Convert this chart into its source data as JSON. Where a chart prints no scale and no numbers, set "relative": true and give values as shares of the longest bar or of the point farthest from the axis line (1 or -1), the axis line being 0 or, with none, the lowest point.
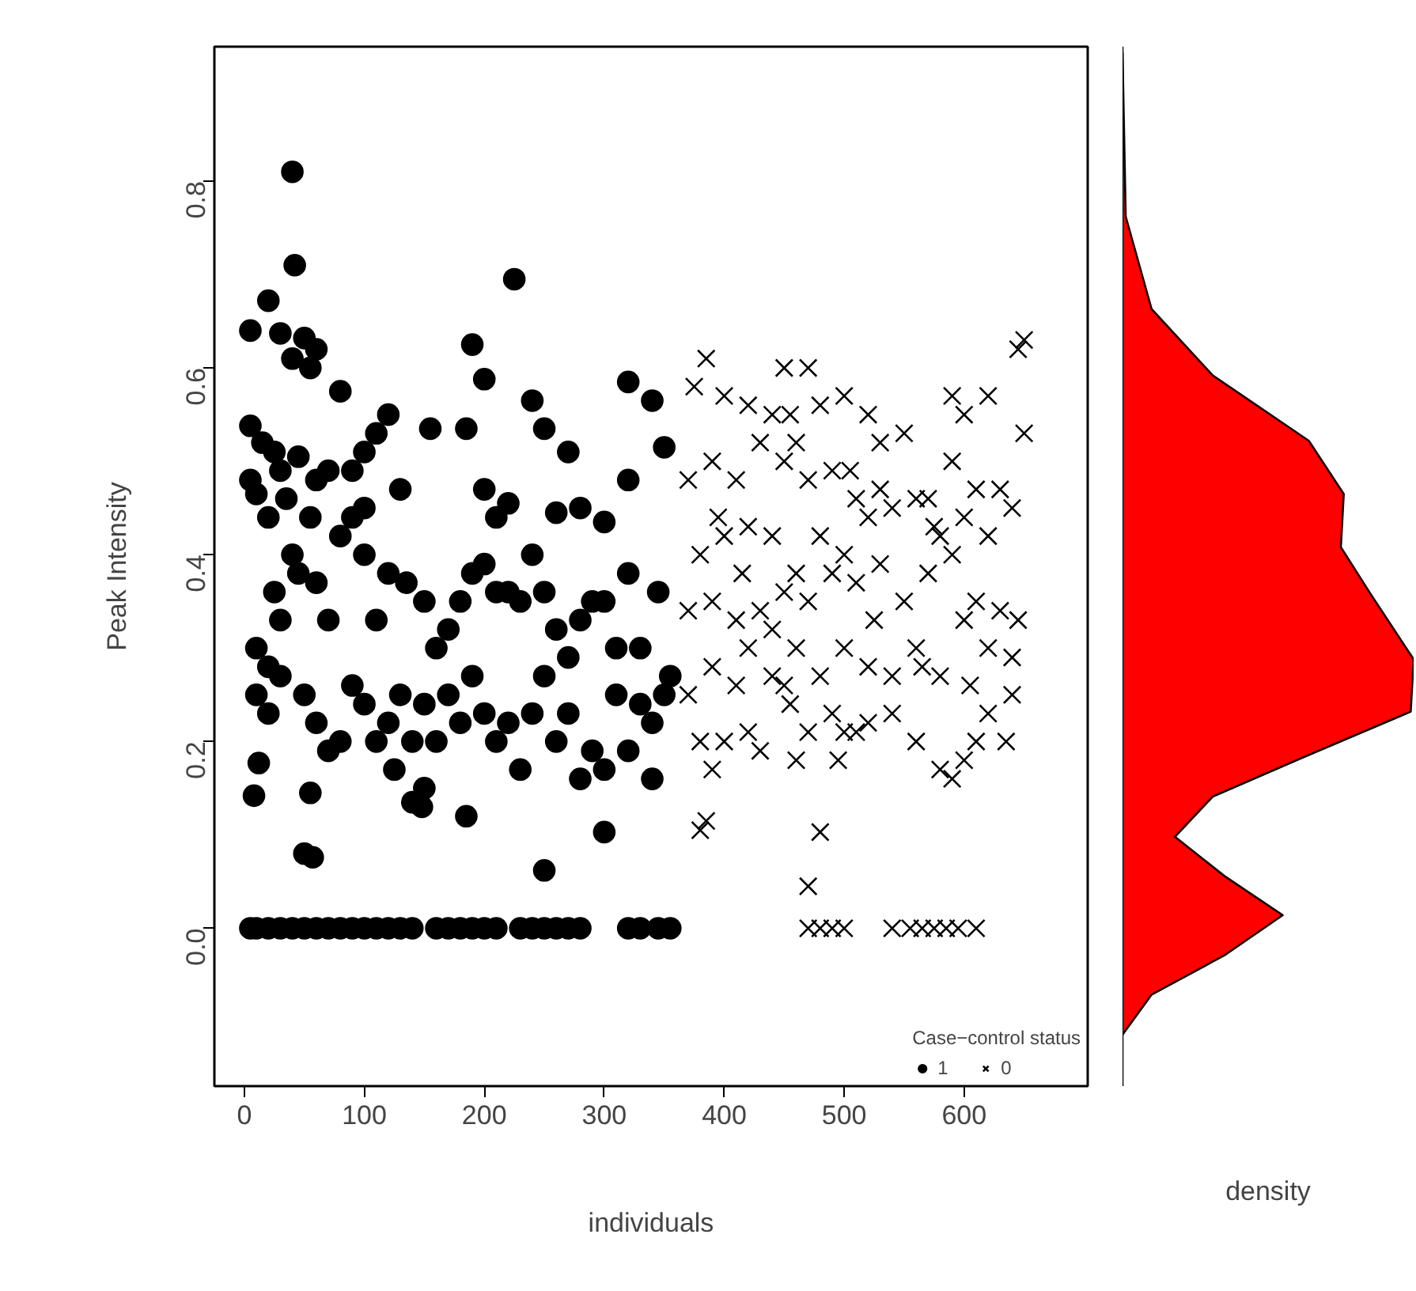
{
  "chart_data": [
    {
      "type": "scatter",
      "xlabel": "individuals",
      "ylabel": "Peak Intensity",
      "legend_title": "Case−control status",
      "legend": "bottom right",
      "grid": false,
      "xlim": [
        -25,
        703
      ],
      "ylim": [
        -0.169,
        0.944
      ],
      "xticks": [
        0,
        100,
        200,
        300,
        400,
        500,
        600
      ],
      "yticks": [
        {
          "value": 0,
          "label": "0.0"
        },
        0.2,
        0.4,
        0.6,
        0.8
      ],
      "series": [
        {
          "name": "1",
          "color": "#000000",
          "marker": "circle",
          "x": [
            5,
            10,
            20,
            30,
            40,
            50,
            60,
            70,
            80,
            90,
            100,
            110,
            120,
            130,
            140,
            160,
            170,
            180,
            190,
            200,
            210,
            230,
            240,
            250,
            260,
            270,
            280,
            320,
            330,
            345,
            355,
            40,
            42,
            225,
            20,
            5,
            30,
            50,
            60,
            40,
            190,
            80,
            200,
            5,
            15,
            25,
            30,
            45,
            55,
            155,
            185,
            240,
            250,
            270,
            320,
            340,
            350,
            110,
            120,
            100,
            5,
            10,
            20,
            35,
            55,
            60,
            70,
            90,
            100,
            130,
            200,
            210,
            220,
            260,
            280,
            300,
            320,
            10,
            20,
            25,
            30,
            40,
            45,
            60,
            70,
            80,
            90,
            100,
            110,
            120,
            135,
            150,
            160,
            170,
            180,
            190,
            200,
            210,
            220,
            230,
            240,
            250,
            260,
            270,
            280,
            290,
            300,
            310,
            320,
            330,
            345,
            10,
            20,
            30,
            50,
            60,
            70,
            80,
            90,
            100,
            110,
            120,
            130,
            140,
            150,
            160,
            170,
            180,
            190,
            200,
            210,
            220,
            230,
            240,
            250,
            260,
            270,
            280,
            290,
            300,
            310,
            320,
            330,
            340,
            350,
            8,
            12,
            55,
            50,
            57,
            140,
            148,
            185,
            250,
            300,
            340,
            355,
            150,
            125
          ],
          "values": [
            0,
            0,
            0,
            0,
            0,
            0,
            0,
            0,
            0,
            0,
            0,
            0,
            0,
            0,
            0,
            0,
            0,
            0,
            0,
            0,
            0,
            0,
            0,
            0,
            0,
            0,
            0,
            0,
            0,
            0,
            0,
            0.81,
            0.71,
            0.695,
            0.672,
            0.64,
            0.637,
            0.632,
            0.62,
            0.61,
            0.625,
            0.575,
            0.588,
            0.538,
            0.52,
            0.51,
            0.49,
            0.505,
            0.6,
            0.535,
            0.535,
            0.565,
            0.535,
            0.51,
            0.585,
            0.565,
            0.515,
            0.53,
            0.55,
            0.51,
            0.48,
            0.465,
            0.44,
            0.46,
            0.44,
            0.48,
            0.49,
            0.49,
            0.45,
            0.47,
            0.47,
            0.44,
            0.455,
            0.445,
            0.45,
            0.435,
            0.48,
            0.3,
            0.28,
            0.36,
            0.33,
            0.4,
            0.38,
            0.37,
            0.33,
            0.42,
            0.44,
            0.4,
            0.33,
            0.38,
            0.37,
            0.35,
            0.3,
            0.32,
            0.35,
            0.38,
            0.39,
            0.36,
            0.36,
            0.35,
            0.4,
            0.36,
            0.32,
            0.29,
            0.33,
            0.35,
            0.35,
            0.3,
            0.38,
            0.3,
            0.36,
            0.25,
            0.23,
            0.27,
            0.25,
            0.22,
            0.19,
            0.2,
            0.26,
            0.24,
            0.2,
            0.22,
            0.25,
            0.2,
            0.24,
            0.2,
            0.25,
            0.22,
            0.27,
            0.23,
            0.2,
            0.22,
            0.17,
            0.23,
            0.27,
            0.2,
            0.23,
            0.16,
            0.19,
            0.17,
            0.25,
            0.19,
            0.24,
            0.22,
            0.25,
            0.142,
            0.177,
            0.145,
            0.08,
            0.076,
            0.135,
            0.13,
            0.12,
            0.062,
            0.103,
            0.16,
            0.27,
            0.15,
            0.17
          ]
        },
        {
          "name": "0",
          "color": "#000000",
          "marker": "cross",
          "x": [
            470,
            480,
            490,
            500,
            540,
            555,
            565,
            575,
            585,
            595,
            610,
            470,
            480,
            380,
            385,
            390,
            380,
            400,
            420,
            430,
            460,
            470,
            490,
            500,
            510,
            520,
            540,
            560,
            580,
            590,
            600,
            610,
            620,
            640,
            370,
            390,
            410,
            420,
            440,
            450,
            460,
            480,
            500,
            520,
            540,
            560,
            580,
            600,
            620,
            640,
            370,
            390,
            410,
            430,
            450,
            470,
            490,
            510,
            530,
            550,
            570,
            590,
            610,
            630,
            645,
            380,
            400,
            420,
            440,
            460,
            480,
            500,
            520,
            540,
            560,
            580,
            600,
            620,
            640,
            370,
            390,
            410,
            430,
            450,
            470,
            490,
            510,
            530,
            550,
            570,
            590,
            610,
            630,
            650,
            375,
            385,
            400,
            420,
            440,
            450,
            470,
            480,
            500,
            520,
            530,
            590,
            600,
            620,
            650,
            645,
            455,
            460,
            440,
            415,
            525,
            565,
            605,
            495,
            455,
            635,
            395,
            505,
            575
          ],
          "values": [
            0,
            0,
            0,
            0,
            0,
            0,
            0,
            0,
            0,
            0,
            0,
            0.045,
            0.103,
            0.105,
            0.115,
            0.17,
            0.2,
            0.2,
            0.21,
            0.19,
            0.18,
            0.21,
            0.23,
            0.21,
            0.21,
            0.22,
            0.23,
            0.2,
            0.17,
            0.16,
            0.18,
            0.2,
            0.23,
            0.25,
            0.25,
            0.28,
            0.26,
            0.3,
            0.27,
            0.26,
            0.3,
            0.27,
            0.3,
            0.28,
            0.27,
            0.3,
            0.27,
            0.33,
            0.3,
            0.29,
            0.34,
            0.35,
            0.33,
            0.34,
            0.36,
            0.35,
            0.38,
            0.37,
            0.39,
            0.35,
            0.38,
            0.4,
            0.35,
            0.34,
            0.33,
            0.4,
            0.42,
            0.43,
            0.42,
            0.38,
            0.42,
            0.4,
            0.44,
            0.45,
            0.46,
            0.42,
            0.44,
            0.42,
            0.45,
            0.48,
            0.5,
            0.48,
            0.52,
            0.5,
            0.48,
            0.49,
            0.46,
            0.47,
            0.53,
            0.46,
            0.5,
            0.47,
            0.47,
            0.53,
            0.58,
            0.61,
            0.57,
            0.56,
            0.55,
            0.6,
            0.6,
            0.56,
            0.57,
            0.55,
            0.52,
            0.57,
            0.55,
            0.57,
            0.63,
            0.62,
            0.55,
            0.52,
            0.32,
            0.38,
            0.33,
            0.28,
            0.26,
            0.18,
            0.24,
            0.2,
            0.44,
            0.49,
            0.43
          ]
        }
      ]
    },
    {
      "type": "area",
      "orientation": "horizontal",
      "relative": true,
      "xlabel": "density",
      "color": "#ff0000",
      "ylim": [
        -0.169,
        0.944
      ],
      "tick_labels": false,
      "x": [
        0.938,
        0.762,
        0.663,
        0.592,
        0.522,
        0.465,
        0.408,
        0.359,
        0.288,
        0.232,
        0.183,
        0.141,
        0.098,
        0.056,
        0.014,
        -0.029,
        -0.071,
        -0.114
      ],
      "values": [
        0,
        0.011,
        0.1,
        0.31,
        0.64,
        0.76,
        0.75,
        0.85,
        1,
        0.99,
        0.62,
        0.31,
        0.18,
        0.35,
        0.55,
        0.35,
        0.1,
        0
      ]
    }
  ]
}
